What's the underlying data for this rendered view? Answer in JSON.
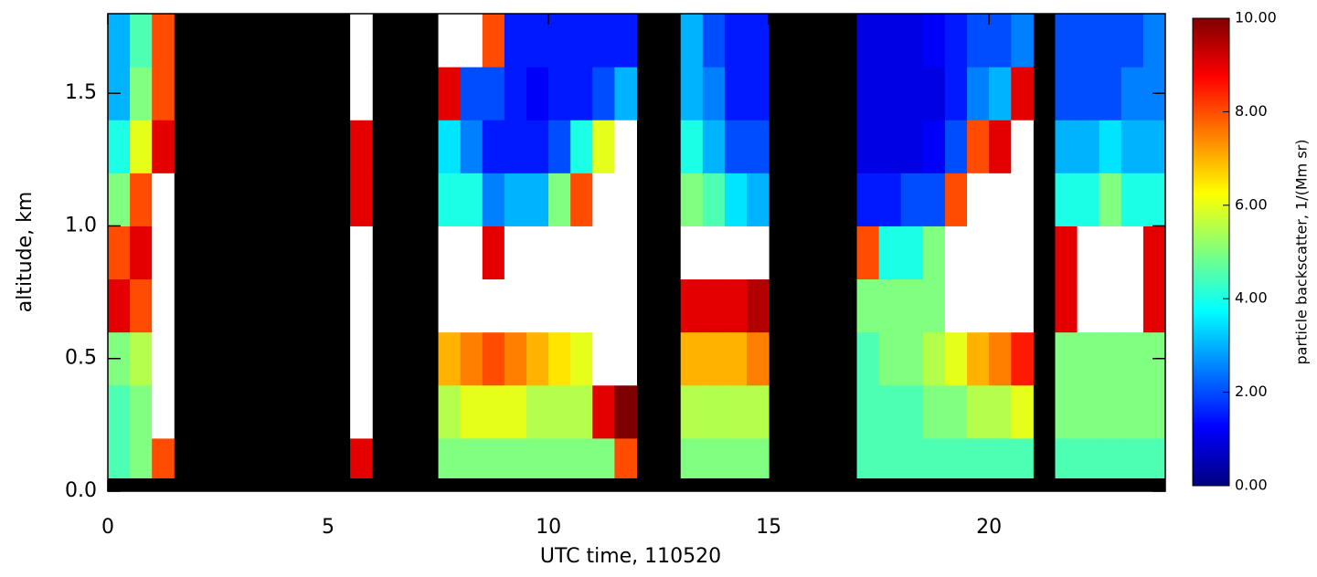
{
  "chart_data": {
    "type": "heatmap",
    "xlabel": "UTC time, 110520",
    "ylabel": "altitude, km",
    "colorbar_label": "particle backscatter, 1/(Mm sr)",
    "xlim": [
      0,
      24
    ],
    "ylim": [
      0,
      1.8
    ],
    "xticks": [
      0,
      5,
      10,
      15,
      20
    ],
    "yticks": [
      {
        "value": 0,
        "label": "0.0"
      },
      0.5,
      {
        "value": 1,
        "label": "1.0"
      },
      1.5
    ],
    "clim": [
      0,
      10
    ],
    "cticks": [
      {
        "value": 0,
        "label": "0.00"
      },
      {
        "value": 2,
        "label": "2.00"
      },
      {
        "value": 4,
        "label": "4.00"
      },
      {
        "value": 6,
        "label": "6.00"
      },
      {
        "value": 8,
        "label": "8.00"
      },
      {
        "value": 10,
        "label": "10.00"
      }
    ],
    "x_edges": [
      0,
      0.5,
      1,
      1.5,
      2,
      2.5,
      3,
      3.5,
      4,
      4.5,
      5,
      5.5,
      6,
      6.5,
      7,
      7.5,
      8,
      8.5,
      9,
      9.5,
      10,
      10.5,
      11,
      11.5,
      12,
      12.5,
      13,
      13.5,
      14,
      14.5,
      15,
      15.5,
      16,
      16.5,
      17,
      17.5,
      18,
      18.5,
      19,
      19.5,
      20,
      20.5,
      21,
      21.5,
      22,
      22.5,
      23,
      23.5,
      24
    ],
    "y_edges": [
      0.05,
      0.2,
      0.4,
      0.6,
      0.8,
      1.0,
      1.2,
      1.4,
      1.6,
      1.8
    ],
    "values": [
      [
        4.5,
        4.5,
        5,
        9,
        8,
        5,
        4,
        3,
        3
      ],
      [
        5,
        5,
        5.5,
        8,
        9,
        8,
        6,
        5,
        4.5
      ],
      [
        8,
        12,
        12,
        12,
        12,
        12,
        9,
        8,
        8
      ],
      null,
      null,
      null,
      null,
      null,
      null,
      null,
      null,
      [
        9,
        12,
        12,
        12,
        12,
        9,
        9,
        12,
        12
      ],
      null,
      null,
      null,
      [
        5,
        5.5,
        7,
        12,
        12,
        4,
        3.5,
        9,
        12
      ],
      [
        5,
        6,
        7.5,
        12,
        12,
        4,
        2.5,
        2,
        12
      ],
      [
        5,
        6,
        8,
        12,
        9,
        2.5,
        1.5,
        2,
        8
      ],
      [
        5,
        6,
        7.5,
        12,
        12,
        3,
        1.5,
        1.5,
        1.5
      ],
      [
        5,
        5.5,
        7,
        12,
        12,
        3,
        1.5,
        1.2,
        1.5
      ],
      [
        5,
        5.5,
        6.5,
        12,
        12,
        5,
        2,
        1.5,
        1.5
      ],
      [
        5,
        5.5,
        6,
        12,
        12,
        8,
        4,
        1.5,
        1.5
      ],
      [
        5,
        9,
        12,
        12,
        12,
        12,
        6,
        2,
        1.5
      ],
      [
        8,
        10,
        12,
        12,
        12,
        12,
        12,
        3,
        1.5
      ],
      null,
      null,
      [
        5,
        5.5,
        7,
        9,
        12,
        5,
        4,
        3,
        3
      ],
      [
        5,
        5.5,
        7,
        9,
        12,
        4.5,
        3,
        2.5,
        2
      ],
      [
        5,
        5.5,
        7,
        9,
        12,
        3.5,
        2,
        1.5,
        1.5
      ],
      [
        5,
        5.5,
        7.5,
        9.5,
        12,
        3,
        2,
        1.5,
        1.5
      ],
      null,
      null,
      null,
      null,
      [
        4.5,
        4.5,
        4.5,
        5,
        8,
        1.5,
        1,
        1,
        1
      ],
      [
        4.5,
        4.5,
        5,
        5,
        4,
        1.5,
        1,
        1,
        1
      ],
      [
        4.5,
        4.5,
        5,
        5,
        4,
        2,
        1,
        1,
        1
      ],
      [
        4.5,
        5,
        5.5,
        5,
        5,
        2,
        1.2,
        1,
        1.2
      ],
      [
        4.5,
        5,
        6,
        12,
        12,
        8,
        2,
        1.5,
        1.5
      ],
      [
        4.5,
        5.5,
        7,
        12,
        12,
        12,
        8,
        2.5,
        2
      ],
      [
        4.5,
        5.5,
        7.5,
        12,
        12,
        12,
        9,
        3,
        2
      ],
      [
        4.5,
        6,
        8.5,
        12,
        12,
        12,
        12,
        9,
        2.5
      ],
      null,
      [
        4.5,
        5,
        5,
        9,
        9,
        4,
        3,
        2,
        2
      ],
      [
        4.5,
        5,
        5,
        12,
        12,
        4,
        3,
        2,
        2
      ],
      [
        4.5,
        5,
        5,
        12,
        12,
        5,
        3.5,
        2,
        2
      ],
      [
        4.5,
        5,
        5,
        12,
        12,
        4,
        3,
        2.5,
        2
      ],
      [
        4.5,
        5,
        5,
        9,
        9,
        4,
        3,
        2.5,
        2.5
      ]
    ]
  }
}
